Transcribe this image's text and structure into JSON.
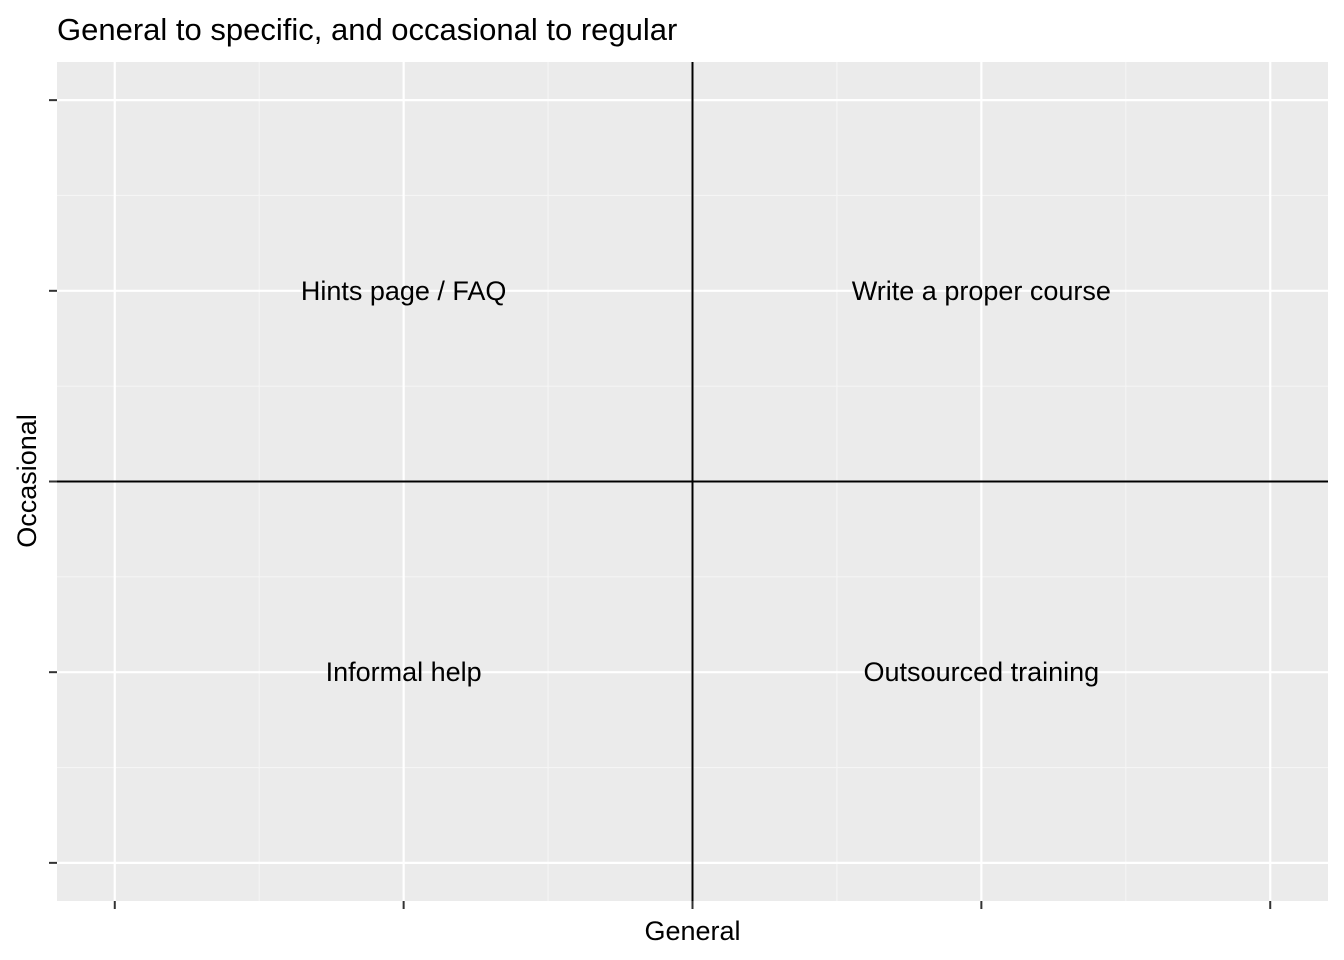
{
  "chart_data": {
    "type": "scatter",
    "title": "General to specific, and occasional to regular",
    "xlabel": "General",
    "ylabel": "Occasional",
    "xlim": [
      -1.1,
      1.1
    ],
    "ylim": [
      -1.1,
      1.1
    ],
    "x_ticks": [
      -1,
      -0.5,
      0,
      0.5,
      1
    ],
    "y_ticks": [
      -1,
      -0.5,
      0,
      0.5,
      1
    ],
    "tick_labels_visible": false,
    "grid": true,
    "reference_lines": {
      "x": 0,
      "y": 0
    },
    "points": [
      {
        "x": -0.5,
        "y": 0.5,
        "label": "Hints page / FAQ"
      },
      {
        "x": 0.5,
        "y": 0.5,
        "label": "Write a proper course"
      },
      {
        "x": -0.5,
        "y": -0.5,
        "label": "Informal help"
      },
      {
        "x": 0.5,
        "y": -0.5,
        "label": "Outsourced training"
      }
    ],
    "colors": {
      "panel_background": "#ebebeb",
      "grid_major": "#ffffff",
      "grid_minor": "#f5f5f5",
      "reference_line": "#000000",
      "tick": "#333333",
      "text": "#000000"
    }
  }
}
